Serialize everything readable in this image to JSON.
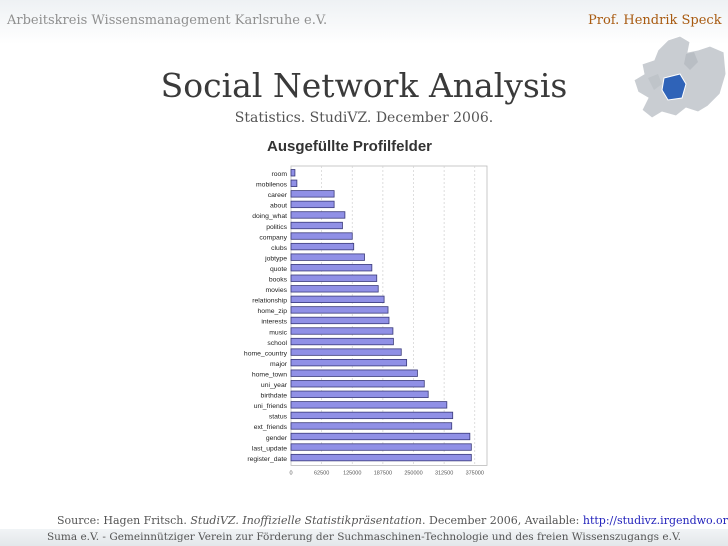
{
  "header": {
    "org": "Arbeitskreis Wissensmanagement Karlsruhe e.V.",
    "author": "Prof. Hendrik Speck"
  },
  "slide": {
    "title": "Social Network Analysis",
    "subtitle": "Statistics. StudiVZ. December 2006."
  },
  "source": {
    "prefix": "Source: Hagen Fritsch. ",
    "work": "StudiVZ. Inoffizielle Statistikpräsentation",
    "middle": ". December 2006, Available: ",
    "link": "http://studivz.irgendwo.org/"
  },
  "footer": {
    "text": "Suma e.V. - Gemeinnütziger Verein zur Förderung der Suchmaschinen-Technologie und des freien Wissenszugangs e.V."
  },
  "colors": {
    "bar_fill": "#9090e6",
    "bar_stroke": "#3a3a7a",
    "map_highlight": "#2f63b8"
  },
  "chart_data": {
    "type": "bar",
    "orientation": "horizontal",
    "title": "Ausgefüllte Profilfelder",
    "categories": [
      "room",
      "mobilenos",
      "career",
      "about",
      "doing_what",
      "politics",
      "company",
      "clubs",
      "jobtype",
      "quote",
      "books",
      "movies",
      "relationship",
      "home_zip",
      "interests",
      "music",
      "school",
      "home_country",
      "major",
      "home_town",
      "uni_year",
      "birthdate",
      "uni_friends",
      "status",
      "ext_friends",
      "gender",
      "last_update",
      "register_date"
    ],
    "values": [
      8000,
      12000,
      88000,
      88000,
      110000,
      105000,
      125000,
      128000,
      150000,
      165000,
      175000,
      178000,
      190000,
      198000,
      200000,
      208000,
      209000,
      225000,
      236000,
      258000,
      272000,
      280000,
      318000,
      330000,
      328000,
      365000,
      368000,
      368000
    ],
    "xticks": [
      0,
      62500,
      125000,
      187500,
      250000,
      312500,
      375000
    ],
    "xlim": [
      0,
      400000
    ],
    "grid": true,
    "xlabel": "",
    "ylabel": ""
  }
}
